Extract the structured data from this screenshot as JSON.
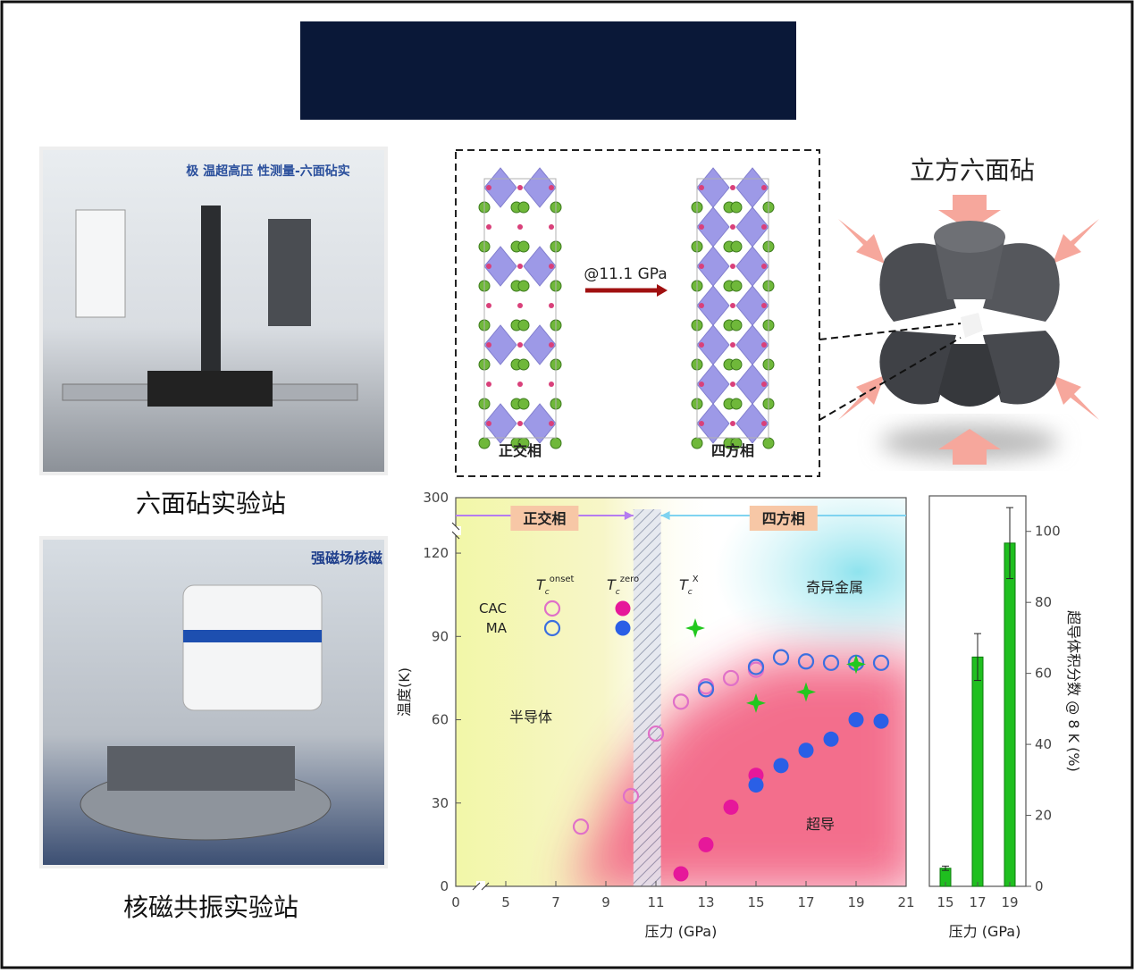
{
  "photos": [
    {
      "caption": "六面砧实验站",
      "sign": "极 温超高压 性测量-六面砧实"
    },
    {
      "caption": "核磁共振实验站",
      "sign": "强磁场核磁"
    }
  ],
  "structure": {
    "arrow_label": "@11.1 GPa",
    "left_label": "正交相",
    "right_label": "四方相"
  },
  "anvil": {
    "title": "立方六面砧"
  },
  "chart_data": [
    {
      "type": "scatter",
      "xlabel": "压力 (GPa)",
      "ylabel": "温度(K)",
      "xlim": [
        0,
        21
      ],
      "xbreak": 5,
      "xticks": [
        0,
        5,
        7,
        9,
        11,
        13,
        15,
        17,
        19,
        21
      ],
      "ylim": [
        0,
        300
      ],
      "ybreak": 130,
      "yticks": [
        0,
        30,
        60,
        90,
        120,
        300
      ],
      "phases": [
        {
          "label": "正交相",
          "range": [
            0,
            10.1
          ],
          "color": "#b57cf0"
        },
        {
          "label": "四方相",
          "range": [
            11.2,
            21
          ],
          "color": "#7fd3f0"
        }
      ],
      "transition": [
        10.1,
        11.2
      ],
      "regions": [
        "半导体",
        "奇异金属",
        "超导"
      ],
      "legend_rows": [
        "CAC",
        "MA"
      ],
      "legend_symbol": "T",
      "legend_sub": "c",
      "legend_columns": [
        "onset",
        "zero",
        "X"
      ],
      "series": [
        {
          "name": "CAC",
          "tc": "onset",
          "marker": "open",
          "color": "#e070c8",
          "x": [
            8,
            10,
            11,
            12,
            13,
            14,
            15
          ],
          "values": [
            21.5,
            32.5,
            55,
            66.5,
            72,
            75,
            78
          ]
        },
        {
          "name": "MA",
          "tc": "onset",
          "marker": "open",
          "color": "#3b6fe0",
          "x": [
            13,
            15,
            16,
            17,
            18,
            19,
            20
          ],
          "values": [
            71,
            79,
            82.5,
            81,
            80.5,
            80.5,
            80.5
          ]
        },
        {
          "name": "CAC",
          "tc": "zero",
          "marker": "filled",
          "color": "#e6189a",
          "x": [
            12,
            13,
            14,
            15
          ],
          "values": [
            4.5,
            15,
            28.5,
            40
          ]
        },
        {
          "name": "MA",
          "tc": "zero",
          "marker": "filled",
          "color": "#2a5fe6",
          "x": [
            15,
            16,
            17,
            18,
            19,
            20
          ],
          "values": [
            36.5,
            43.5,
            49,
            53,
            60,
            59.5
          ]
        },
        {
          "name": "MA",
          "tc": "X",
          "marker": "star",
          "color": "#22c81e",
          "x": [
            15,
            17,
            19
          ],
          "values": [
            66,
            70,
            80
          ]
        }
      ]
    },
    {
      "type": "bar",
      "xlabel": "压力 (GPa)",
      "ylabel": "超导体积分数 @ 8 K (%)",
      "categories": [
        "15",
        "17",
        "19"
      ],
      "values": [
        5.1,
        64.6,
        96.7
      ],
      "errors": [
        0.6,
        6.6,
        10
      ],
      "color": "#1fbf1f",
      "ylim": [
        0,
        110
      ],
      "yticks": [
        0,
        20,
        40,
        60,
        80,
        100
      ]
    }
  ]
}
